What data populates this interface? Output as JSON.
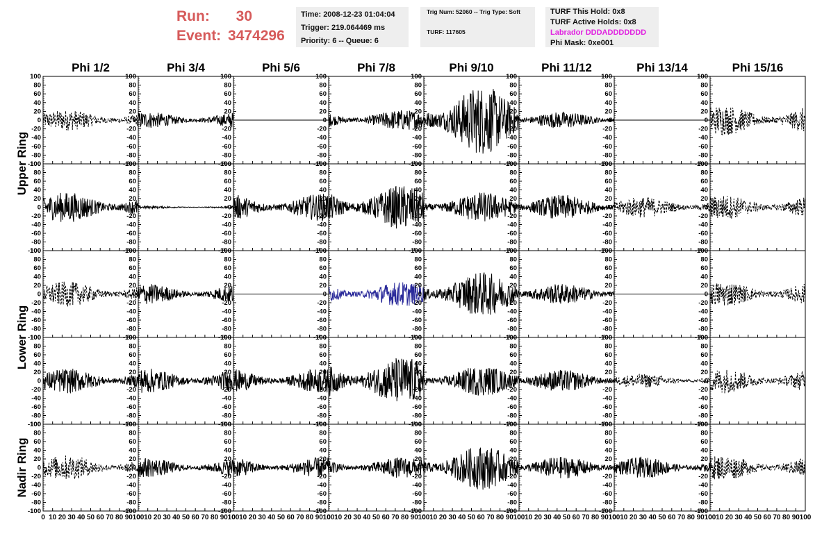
{
  "header": {
    "run_label": "Run:",
    "run_value": "30",
    "event_label": "Event:",
    "event_value": "3474296",
    "accent_color": "#d65a5a"
  },
  "info_time": {
    "time": "Time: 2008-12-23 01:04:04",
    "trigger": "Trigger: 219.064469 ms",
    "priority": "Priority: 6 -- Queue: 6"
  },
  "info_trig": {
    "trig": "Trig Num: 52060 -- Trig Type: Soft",
    "turf": "TURF: 117605"
  },
  "info_turf": {
    "this_hold": "TURF This Hold: 0x8",
    "active_holds": "TURF Active Holds: 0x8",
    "labrador": "Labrador DDDADDDDDDD",
    "phi_mask": "Phi Mask: 0xe001",
    "labrador_color": "#e020e0"
  },
  "chart_data": {
    "type": "line",
    "columns": [
      "Phi 1/2",
      "Phi 3/4",
      "Phi 5/6",
      "Phi 7/8",
      "Phi 9/10",
      "Phi 11/12",
      "Phi 13/14",
      "Phi 15/16"
    ],
    "ring_labels": [
      "Upper Ring",
      "Lower Ring",
      "Nadir Ring"
    ],
    "rows": 5,
    "xlim": [
      0,
      100
    ],
    "ylim": [
      -100,
      100
    ],
    "x_ticks": [
      "0",
      "10",
      "20",
      "30",
      "40",
      "50",
      "60",
      "70",
      "80",
      "90",
      "100"
    ],
    "y_ticks": [
      "100",
      "80",
      "60",
      "40",
      "20",
      "0",
      "-20",
      "-40",
      "-60",
      "-80",
      "-100"
    ],
    "panels": [
      [
        {
          "amp": 15,
          "style": "dashed",
          "color": "#000000"
        },
        {
          "amp": 12,
          "style": "solid",
          "color": "#000000"
        },
        {
          "amp": 0,
          "style": "solid",
          "color": "#000000"
        },
        {
          "amp": 15,
          "style": "solid",
          "color": "#000000"
        },
        {
          "amp": 50,
          "style": "solid",
          "color": "#000000"
        },
        {
          "amp": 12,
          "style": "solid",
          "color": "#000000"
        },
        {
          "amp": 0,
          "style": "solid",
          "color": "#000000"
        },
        {
          "amp": 22,
          "style": "dashed",
          "color": "#000000"
        }
      ],
      [
        {
          "amp": 22,
          "style": "solid",
          "color": "#000000"
        },
        {
          "amp": 2,
          "style": "solid",
          "color": "#000000"
        },
        {
          "amp": 20,
          "style": "solid",
          "color": "#000000"
        },
        {
          "amp": 32,
          "style": "solid",
          "color": "#000000"
        },
        {
          "amp": 22,
          "style": "solid",
          "color": "#000000"
        },
        {
          "amp": 18,
          "style": "solid",
          "color": "#000000"
        },
        {
          "amp": 15,
          "style": "dashed",
          "color": "#000000"
        },
        {
          "amp": 18,
          "style": "dashed",
          "color": "#000000"
        }
      ],
      [
        {
          "amp": 18,
          "style": "dashed",
          "color": "#000000"
        },
        {
          "amp": 15,
          "style": "solid",
          "color": "#000000"
        },
        {
          "amp": 0,
          "style": "solid",
          "color": "#000000"
        },
        {
          "amp": 18,
          "style": "solid",
          "color": "#2a2a9a"
        },
        {
          "amp": 32,
          "style": "solid",
          "color": "#000000"
        },
        {
          "amp": 15,
          "style": "solid",
          "color": "#000000"
        },
        {
          "amp": 0,
          "style": "solid",
          "color": "#000000"
        },
        {
          "amp": 18,
          "style": "dashed",
          "color": "#000000"
        }
      ],
      [
        {
          "amp": 18,
          "style": "solid",
          "color": "#000000"
        },
        {
          "amp": 18,
          "style": "solid",
          "color": "#000000"
        },
        {
          "amp": 18,
          "style": "solid",
          "color": "#000000"
        },
        {
          "amp": 35,
          "style": "solid",
          "color": "#000000"
        },
        {
          "amp": 22,
          "style": "solid",
          "color": "#000000"
        },
        {
          "amp": 16,
          "style": "solid",
          "color": "#000000"
        },
        {
          "amp": 10,
          "style": "dashed",
          "color": "#000000"
        },
        {
          "amp": 18,
          "style": "dashed",
          "color": "#000000"
        }
      ],
      [
        {
          "amp": 18,
          "style": "dashed",
          "color": "#000000"
        },
        {
          "amp": 14,
          "style": "solid",
          "color": "#000000"
        },
        {
          "amp": 15,
          "style": "solid",
          "color": "#000000"
        },
        {
          "amp": 15,
          "style": "solid",
          "color": "#000000"
        },
        {
          "amp": 32,
          "style": "solid",
          "color": "#000000"
        },
        {
          "amp": 16,
          "style": "solid",
          "color": "#000000"
        },
        {
          "amp": 15,
          "style": "solid",
          "color": "#000000"
        },
        {
          "amp": 18,
          "style": "dashed",
          "color": "#000000"
        }
      ]
    ]
  }
}
